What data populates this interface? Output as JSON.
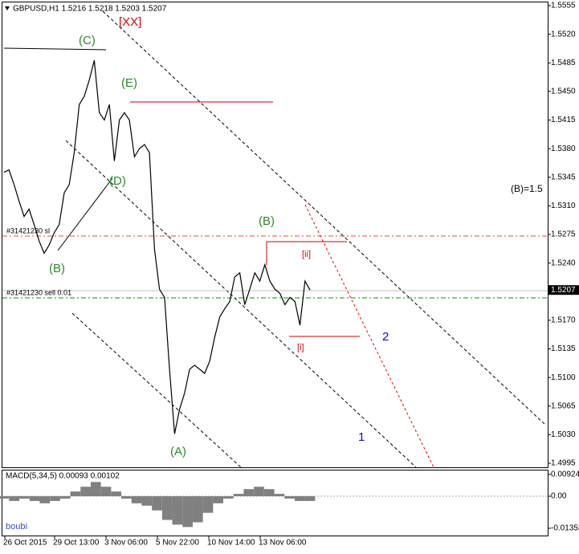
{
  "chart_data": {
    "type": "line",
    "title": "GBPUSD,H1  1.5216 1.5218 1.5203 1.5207",
    "series": [
      {
        "name": "GBPUSD",
        "color": "#000000",
        "values": [
          1.5351,
          1.5354,
          1.5336,
          1.5316,
          1.5297,
          1.5306,
          1.5287,
          1.5267,
          1.5252,
          1.5262,
          1.5277,
          1.5287,
          1.5326,
          1.5336,
          1.5375,
          1.5434,
          1.5444,
          1.5464,
          1.5488,
          1.5424,
          1.5415,
          1.5434,
          1.5365,
          1.5415,
          1.5424,
          1.5415,
          1.537,
          1.538,
          1.5385,
          1.5375,
          1.5257,
          1.5208,
          1.5198,
          1.511,
          1.5031,
          1.5061,
          1.5081,
          1.511,
          1.5115,
          1.511,
          1.5105,
          1.512,
          1.5149,
          1.5174,
          1.5184,
          1.5193,
          1.5223,
          1.5228,
          1.5189,
          1.5208,
          1.5228,
          1.5218,
          1.5238,
          1.5218,
          1.5208,
          1.5203,
          1.5189,
          1.5198,
          1.5193,
          1.5164,
          1.5218,
          1.5207
        ]
      }
    ],
    "ylim": [
      1.4995,
      1.5555
    ],
    "yticks": [
      1.5555,
      {
        "value": 1.552,
        "label": "1.5520"
      },
      1.5485,
      {
        "value": 1.545,
        "label": "1.5450"
      },
      1.5415,
      {
        "value": 1.538,
        "label": "1.5380"
      },
      1.5345,
      {
        "value": 1.531,
        "label": "1.5310"
      },
      1.5275,
      {
        "value": 1.524,
        "label": "1.5240"
      },
      {
        "value": 1.517,
        "label": "1.5170"
      },
      1.5135,
      {
        "value": 1.51,
        "label": "1.5100"
      },
      1.5065,
      {
        "value": 1.503,
        "label": "1.5030"
      },
      1.4995
    ],
    "current_price": 1.5207,
    "time_labels": [
      "26 Oct 2015",
      "29 Oct 13:00",
      "3 Nov 06:00",
      "5 Nov 22:00",
      "10 Nov 14:00",
      "13 Nov 06:00"
    ],
    "annotations": [
      "[XX]",
      "(C)",
      "(E)",
      "(D)",
      "(B)",
      "(A)",
      "(B)",
      "[ii]",
      "[i]",
      "2",
      "1",
      "(B)=1.5"
    ],
    "orders": [
      "#31421230 sl",
      "#31421230 sell 0.01"
    ],
    "macd": {
      "label": "MACD(5,34,5) 0.00093 0.00102",
      "color": "#808080",
      "values": [
        -0.001,
        -0.002,
        -0.001,
        -0.002,
        -0.003,
        -0.002,
        -0.001,
        0.002,
        0.004,
        0.006,
        0.004,
        0.002,
        -0.001,
        -0.003,
        -0.004,
        -0.006,
        -0.01,
        -0.012,
        -0.013,
        -0.011,
        -0.007,
        -0.003,
        -0.001,
        0.001,
        0.003,
        0.004,
        0.003,
        0.001,
        -0.001,
        -0.002,
        -0.002
      ],
      "ylim": [
        -0.0166,
        0.0112
      ],
      "yticks": [
        0.00924,
        {
          "value": 0,
          "label": "0.00"
        },
        -0.01353
      ]
    },
    "watermark": "boubi"
  }
}
